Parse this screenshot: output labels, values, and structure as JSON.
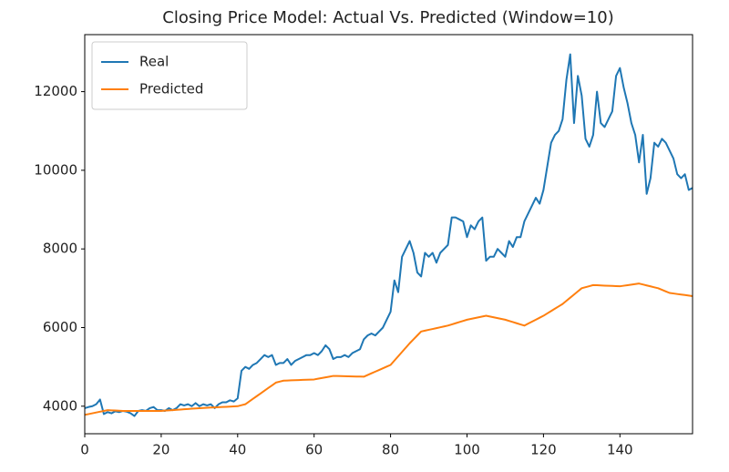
{
  "chart_data": {
    "type": "line",
    "title": "Closing Price Model: Actual Vs. Predicted (Window=10)",
    "x": [
      0,
      1,
      2,
      3,
      4,
      5,
      6,
      7,
      8,
      9,
      10,
      11,
      12,
      13,
      14,
      15,
      16,
      17,
      18,
      19,
      20,
      21,
      22,
      23,
      24,
      25,
      26,
      27,
      28,
      29,
      30,
      31,
      32,
      33,
      34,
      35,
      36,
      37,
      38,
      39,
      40,
      41,
      42,
      43,
      44,
      45,
      46,
      47,
      48,
      49,
      50,
      51,
      52,
      53,
      54,
      55,
      56,
      57,
      58,
      59,
      60,
      61,
      62,
      63,
      64,
      65,
      66,
      67,
      68,
      69,
      70,
      71,
      72,
      73,
      74,
      75,
      76,
      77,
      78,
      79,
      80,
      81,
      82,
      83,
      84,
      85,
      86,
      87,
      88,
      89,
      90,
      91,
      92,
      93,
      94,
      95,
      96,
      97,
      98,
      99,
      100,
      101,
      102,
      103,
      104,
      105,
      106,
      107,
      108,
      109,
      110,
      111,
      112,
      113,
      114,
      115,
      116,
      117,
      118,
      119,
      120,
      121,
      122,
      123,
      124,
      125,
      126,
      127,
      128,
      129,
      130,
      131,
      132,
      133,
      134,
      135,
      136,
      137,
      138,
      139,
      140,
      141,
      142,
      143,
      144,
      145,
      146,
      147,
      148,
      149,
      150,
      151,
      152,
      153,
      154,
      155,
      156,
      157,
      158,
      159
    ],
    "series": [
      {
        "name": "Real",
        "color": "#1f77b4",
        "values": [
          3950,
          3980,
          4000,
          4050,
          4170,
          3800,
          3850,
          3820,
          3870,
          3850,
          3880,
          3860,
          3820,
          3750,
          3880,
          3900,
          3880,
          3950,
          3980,
          3900,
          3900,
          3880,
          3950,
          3900,
          3950,
          4050,
          4020,
          4050,
          4000,
          4080,
          4000,
          4050,
          4020,
          4050,
          3950,
          4050,
          4100,
          4100,
          4150,
          4120,
          4200,
          4900,
          5000,
          4950,
          5050,
          5100,
          5200,
          5300,
          5250,
          5300,
          5050,
          5100,
          5100,
          5200,
          5050,
          5150,
          5200,
          5250,
          5300,
          5300,
          5350,
          5300,
          5400,
          5550,
          5450,
          5200,
          5250,
          5250,
          5300,
          5250,
          5350,
          5400,
          5450,
          5700,
          5800,
          5850,
          5800,
          5900,
          6000,
          6200,
          6400,
          7200,
          6900,
          7800,
          8000,
          8200,
          7900,
          7400,
          7300,
          7900,
          7800,
          7900,
          7650,
          7900,
          8000,
          8100,
          8800,
          8800,
          8750,
          8700,
          8300,
          8600,
          8500,
          8700,
          8800,
          7700,
          7800,
          7800,
          8000,
          7900,
          7800,
          8200,
          8050,
          8300,
          8300,
          8700,
          8900,
          9100,
          9300,
          9150,
          9500,
          10100,
          10700,
          10900,
          11000,
          11300,
          12300,
          12950,
          11200,
          12400,
          11900,
          10800,
          10600,
          10900,
          12000,
          11200,
          11100,
          11300,
          11500,
          12400,
          12600,
          12100,
          11700,
          11200,
          10900,
          10200,
          10900,
          9400,
          9800,
          10700,
          10600,
          10800,
          10700,
          10500,
          10300,
          9900,
          9800,
          9900,
          9500,
          9550
        ]
      },
      {
        "name": "Predicted",
        "color": "#ff7f0e",
        "values": [
          3780,
          3800,
          3820,
          3840,
          3860,
          3880,
          3900,
          3895,
          3890,
          3885,
          3880,
          3880,
          3880,
          3880,
          3880,
          3880,
          3880,
          3880,
          3880,
          3880,
          3880,
          3887,
          3894,
          3901,
          3908,
          3915,
          3922,
          3929,
          3936,
          3943,
          3950,
          3955,
          3960,
          3965,
          3970,
          3975,
          3980,
          3985,
          3990,
          3995,
          4000,
          4025,
          4050,
          4119,
          4188,
          4256,
          4325,
          4394,
          4462,
          4531,
          4600,
          4625,
          4650,
          4654,
          4658,
          4661,
          4665,
          4669,
          4672,
          4676,
          4680,
          4698,
          4716,
          4734,
          4752,
          4770,
          4768,
          4765,
          4763,
          4760,
          4758,
          4755,
          4753,
          4750,
          4793,
          4836,
          4879,
          4921,
          4964,
          5007,
          5050,
          5160,
          5270,
          5380,
          5490,
          5600,
          5700,
          5800,
          5900,
          5921,
          5943,
          5964,
          5986,
          6007,
          6029,
          6050,
          6080,
          6110,
          6140,
          6170,
          6200,
          6220,
          6240,
          6260,
          6280,
          6300,
          6280,
          6260,
          6240,
          6220,
          6200,
          6170,
          6140,
          6110,
          6080,
          6050,
          6100,
          6150,
          6200,
          6250,
          6300,
          6360,
          6420,
          6480,
          6540,
          6600,
          6680,
          6760,
          6840,
          6920,
          7000,
          7027,
          7053,
          7080,
          7076,
          7071,
          7067,
          7063,
          7059,
          7054,
          7050,
          7064,
          7078,
          7092,
          7106,
          7120,
          7096,
          7072,
          7048,
          7024,
          7000,
          6960,
          6920,
          6880,
          6867,
          6853,
          6840,
          6827,
          6813,
          6800
        ]
      }
    ],
    "xlim": [
      0,
      159
    ],
    "xticks": [
      0,
      20,
      40,
      60,
      80,
      100,
      120,
      140
    ],
    "ylim": [
      3300,
      13450
    ],
    "yticks": [
      4000,
      6000,
      8000,
      10000,
      12000
    ],
    "legend": "upper left",
    "grid": false
  }
}
